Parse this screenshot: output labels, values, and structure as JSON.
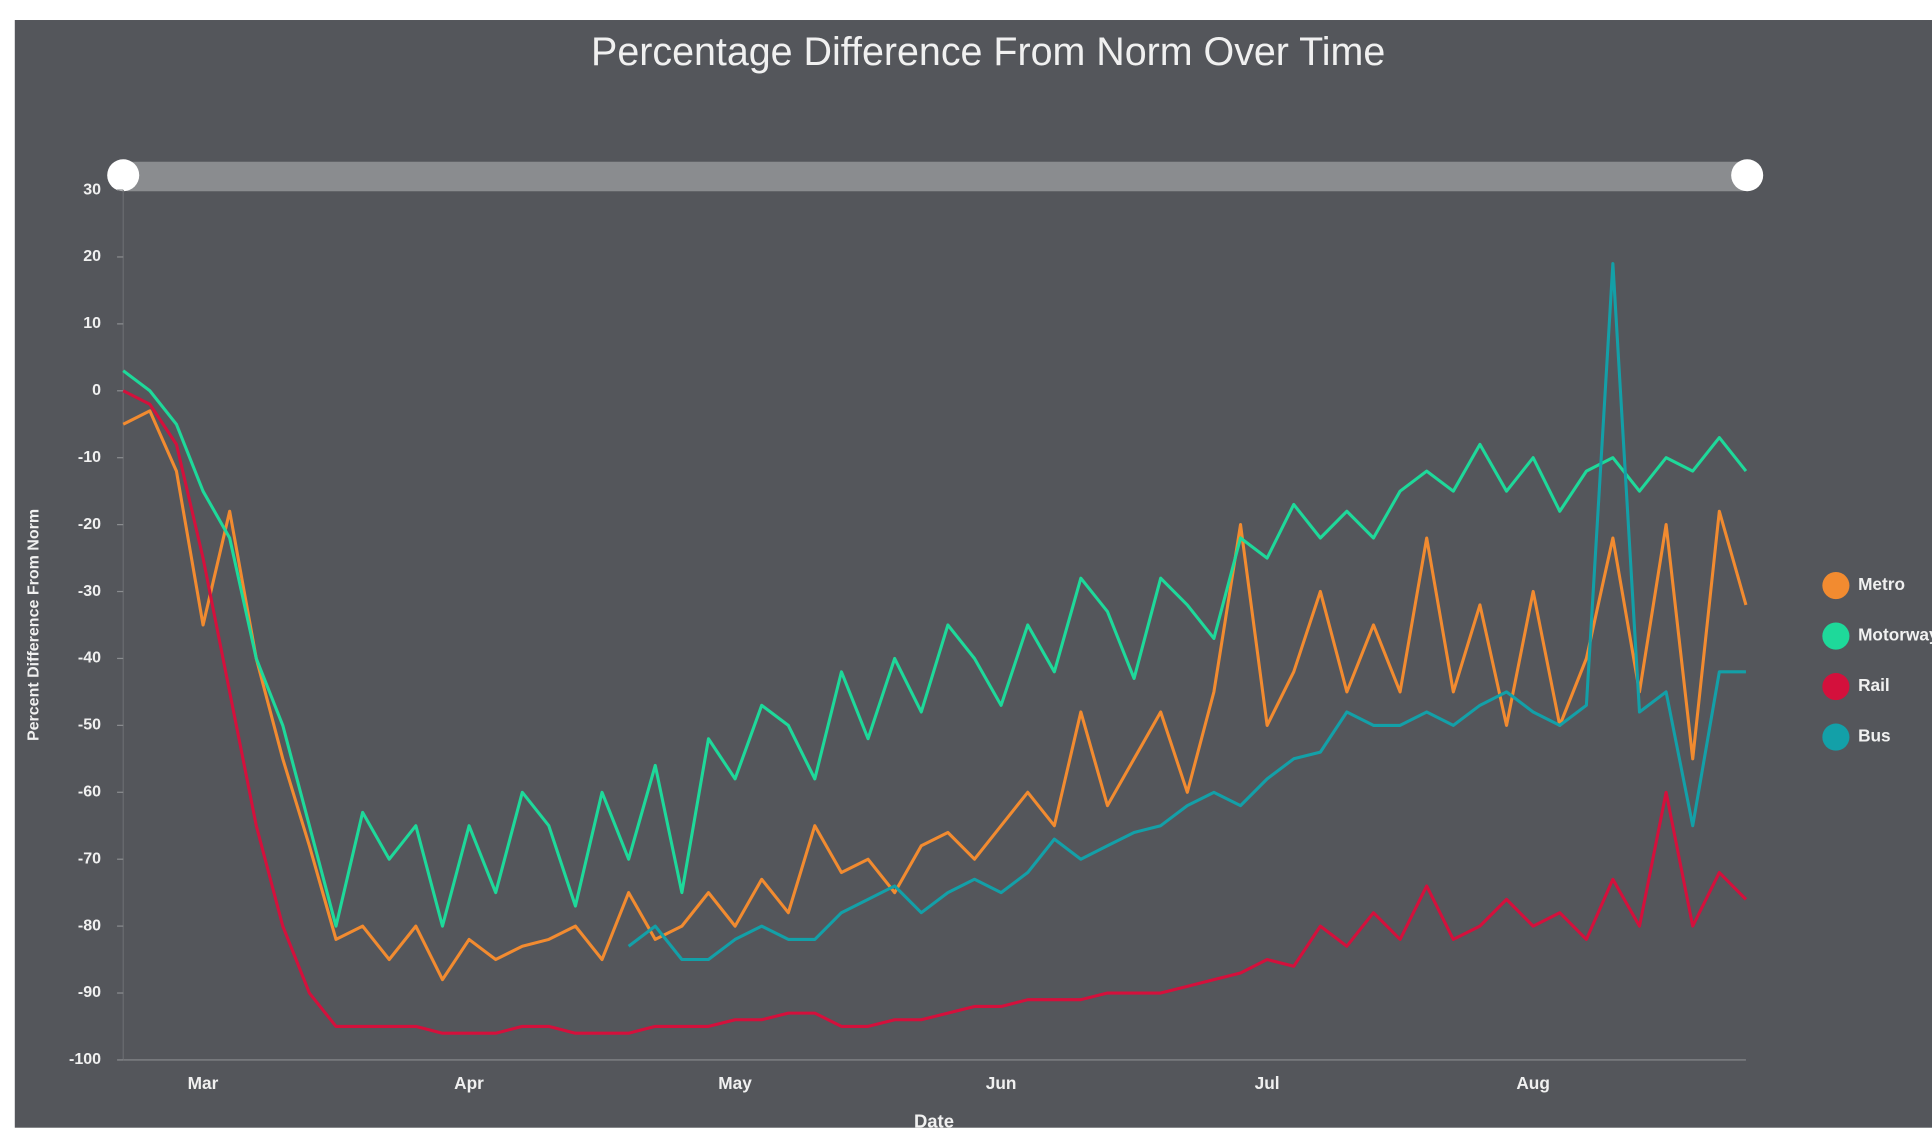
{
  "chart_data": {
    "type": "line",
    "title": "Percentage Difference From Norm Over Time",
    "y_label": "Percent Difference From Norm",
    "x_label": "Date",
    "categories": [
      null,
      null,
      null,
      "Mar",
      null,
      null,
      null,
      null,
      null,
      null,
      null,
      null,
      null,
      "Apr",
      null,
      null,
      null,
      null,
      null,
      null,
      null,
      null,
      null,
      "May",
      null,
      null,
      null,
      null,
      null,
      null,
      null,
      null,
      null,
      "Jun",
      null,
      null,
      null,
      null,
      null,
      null,
      null,
      null,
      null,
      "Jul",
      null,
      null,
      null,
      null,
      null,
      null,
      null,
      null,
      null,
      "Aug",
      null,
      null,
      null,
      null,
      null,
      null,
      null,
      null
    ],
    "ylim": [
      -100,
      30
    ],
    "yticks": [
      -100,
      -90,
      -80,
      -70,
      -60,
      -50,
      -40,
      -30,
      -20,
      -10,
      0,
      10,
      20,
      30
    ],
    "legend": "right",
    "series": [
      {
        "name": "Metro",
        "color": "#f28b30",
        "values": [
          -5,
          -3,
          -12,
          -35,
          -18,
          -40,
          -55,
          -68,
          -82,
          -80,
          -85,
          -80,
          -88,
          -82,
          -85,
          -83,
          -82,
          -80,
          -85,
          -75,
          -82,
          -80,
          -75,
          -80,
          -73,
          -78,
          -65,
          -72,
          -70,
          -75,
          -68,
          -66,
          -70,
          -65,
          -60,
          -65,
          -48,
          -62,
          -55,
          -48,
          -60,
          -45,
          -20,
          -50,
          -42,
          -30,
          -45,
          -35,
          -45,
          -22,
          -45,
          -32,
          -50,
          -30,
          -50,
          -40,
          -22,
          -45,
          -20,
          -55,
          -18,
          -32
        ]
      },
      {
        "name": "Motorway",
        "color": "#1ed99a",
        "values": [
          3,
          0,
          -5,
          -15,
          -22,
          -40,
          -50,
          -65,
          -80,
          -63,
          -70,
          -65,
          -80,
          -65,
          -75,
          -60,
          -65,
          -77,
          -60,
          -70,
          -56,
          -75,
          -52,
          -58,
          -47,
          -50,
          -58,
          -42,
          -52,
          -40,
          -48,
          -35,
          -40,
          -47,
          -35,
          -42,
          -28,
          -33,
          -43,
          -28,
          -32,
          -37,
          -22,
          -25,
          -17,
          -22,
          -18,
          -22,
          -15,
          -12,
          -15,
          -8,
          -15,
          -10,
          -18,
          -12,
          -10,
          -15,
          -10,
          -12,
          -7,
          -12
        ]
      },
      {
        "name": "Rail",
        "color": "#d4103c",
        "values": [
          0,
          -2,
          -8,
          -25,
          -45,
          -65,
          -80,
          -90,
          -95,
          -95,
          -95,
          -95,
          -96,
          -96,
          -96,
          -95,
          -95,
          -96,
          -96,
          -96,
          -95,
          -95,
          -95,
          -94,
          -94,
          -93,
          -93,
          -95,
          -95,
          -94,
          -94,
          -93,
          -92,
          -92,
          -91,
          -91,
          -91,
          -90,
          -90,
          -90,
          -89,
          -88,
          -87,
          -85,
          -86,
          -80,
          -83,
          -78,
          -82,
          -74,
          -82,
          -80,
          -76,
          -80,
          -78,
          -82,
          -73,
          -80,
          -60,
          -80,
          -72,
          -76
        ]
      },
      {
        "name": "Bus",
        "color": "#13a0a8",
        "values": [
          null,
          null,
          null,
          null,
          null,
          null,
          null,
          null,
          null,
          null,
          null,
          null,
          null,
          null,
          null,
          null,
          null,
          null,
          null,
          -83,
          -80,
          -85,
          -85,
          -82,
          -80,
          -82,
          -82,
          -78,
          -76,
          -74,
          -78,
          -75,
          -73,
          -75,
          -72,
          -67,
          -70,
          -68,
          -66,
          -65,
          -62,
          -60,
          -62,
          -58,
          -55,
          -54,
          -48,
          -50,
          -50,
          -48,
          -50,
          -47,
          -45,
          -48,
          -50,
          -47,
          19,
          -48,
          -45,
          -65,
          -42,
          -42
        ]
      }
    ]
  }
}
